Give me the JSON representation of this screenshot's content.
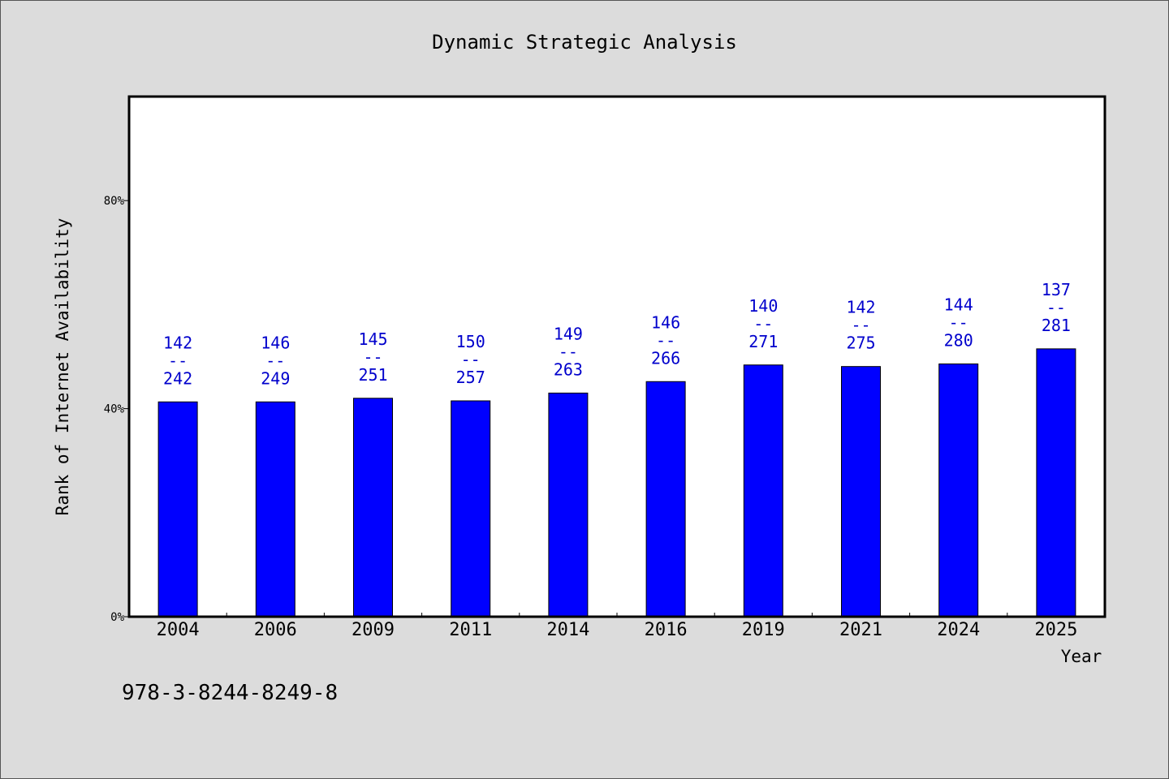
{
  "chart_data": {
    "type": "bar",
    "title": "Dynamic Strategic Analysis",
    "xlabel": "Year",
    "ylabel": "Rank of Internet Availability",
    "categories": [
      "2004",
      "2006",
      "2009",
      "2011",
      "2014",
      "2016",
      "2019",
      "2021",
      "2024",
      "2025"
    ],
    "values": [
      41.3,
      41.3,
      42.0,
      41.5,
      43.0,
      45.2,
      48.4,
      48.1,
      48.6,
      51.5
    ],
    "labels": [
      {
        "top": "142",
        "sep": "--",
        "bottom": "242"
      },
      {
        "top": "146",
        "sep": "--",
        "bottom": "249"
      },
      {
        "top": "145",
        "sep": "--",
        "bottom": "251"
      },
      {
        "top": "150",
        "sep": "--",
        "bottom": "257"
      },
      {
        "top": "149",
        "sep": "--",
        "bottom": "263"
      },
      {
        "top": "146",
        "sep": "--",
        "bottom": "266"
      },
      {
        "top": "140",
        "sep": "--",
        "bottom": "271"
      },
      {
        "top": "142",
        "sep": "--",
        "bottom": "275"
      },
      {
        "top": "144",
        "sep": "--",
        "bottom": "280"
      },
      {
        "top": "137",
        "sep": "--",
        "bottom": "281"
      }
    ],
    "yticks": [
      {
        "value": 0,
        "label": "0%"
      },
      {
        "value": 40,
        "label": "40%"
      },
      {
        "value": 80,
        "label": "80%"
      }
    ],
    "ylim": [
      0,
      100
    ],
    "grid": false,
    "legend": "none",
    "bar_color": "#0000ff",
    "label_color": "#0000cc"
  },
  "footer": {
    "isbn": "978-3-8244-8249-8"
  }
}
